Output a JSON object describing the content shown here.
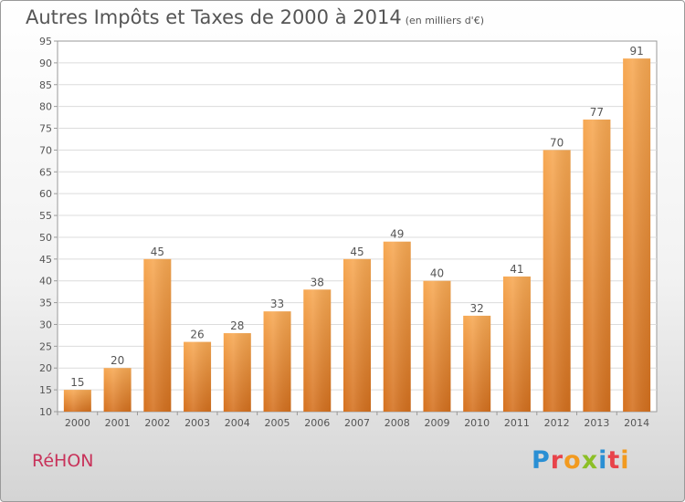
{
  "chart_data": {
    "type": "bar",
    "title": "Autres Impôts et Taxes de 2000 à 2014",
    "subtitle": "(en milliers d'€)",
    "categories": [
      "2000",
      "2001",
      "2002",
      "2003",
      "2004",
      "2005",
      "2006",
      "2007",
      "2008",
      "2009",
      "2010",
      "2011",
      "2012",
      "2013",
      "2014"
    ],
    "values": [
      15,
      20,
      45,
      26,
      28,
      33,
      38,
      45,
      49,
      40,
      32,
      41,
      70,
      77,
      91
    ],
    "ylim": [
      10,
      95
    ],
    "yticks": [
      10,
      15,
      20,
      25,
      30,
      35,
      40,
      45,
      50,
      55,
      60,
      65,
      70,
      75,
      80,
      85,
      90,
      95
    ],
    "grid": true,
    "bar_color": "#f2a04a"
  },
  "footer": {
    "commune": "RéHON",
    "brand": "Proxiti",
    "brand_colors": [
      "#2a8fd4",
      "#e8434a",
      "#f29a1f",
      "#8cbf26",
      "#2a8fd4",
      "#e8434a",
      "#f29a1f"
    ]
  }
}
